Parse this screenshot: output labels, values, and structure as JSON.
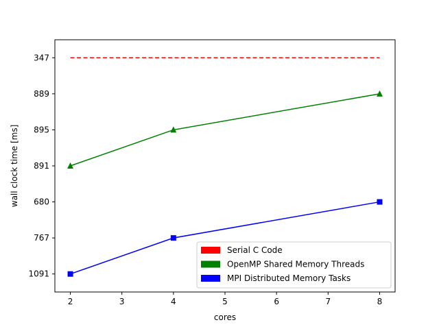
{
  "chart_data": {
    "type": "line",
    "title": "",
    "xlabel": "cores",
    "ylabel": "wall clock time [ms]",
    "x_ticks": [
      2,
      3,
      4,
      5,
      6,
      7,
      8
    ],
    "xlim": [
      1.7,
      8.3
    ],
    "y_categories": [
      "1091",
      "767",
      "680",
      "891",
      "895",
      "889",
      "347"
    ],
    "grid": false,
    "legend_position": "lower-right",
    "series": [
      {
        "name": "Serial C Code",
        "color": "#ff0000",
        "linestyle": "dashed",
        "marker": "none",
        "x": [
          2,
          8
        ],
        "y": [
          "347",
          "347"
        ]
      },
      {
        "name": "OpenMP Shared Memory Threads",
        "color": "#008000",
        "linestyle": "solid",
        "marker": "triangle",
        "x": [
          2,
          4,
          8
        ],
        "y": [
          "891",
          "895",
          "889"
        ]
      },
      {
        "name": "MPI Distributed Memory Tasks",
        "color": "#0000ff",
        "linestyle": "solid",
        "marker": "square",
        "x": [
          2,
          4,
          8
        ],
        "y": [
          "1091",
          "767",
          "680"
        ]
      }
    ]
  }
}
